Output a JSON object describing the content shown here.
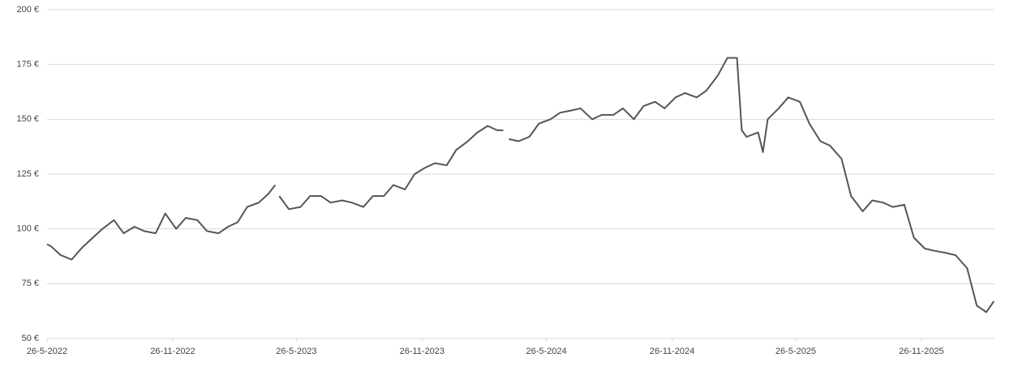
{
  "chart_data": {
    "type": "line",
    "x": [
      "26-5-2022",
      "1-6-2022",
      "15-6-2022",
      "1-7-2022",
      "15-7-2022",
      "1-8-2022",
      "15-8-2022",
      "1-9-2022",
      "15-9-2022",
      "1-10-2022",
      "15-10-2022",
      "1-11-2022",
      "15-11-2022",
      "1-12-2022",
      "15-12-2022",
      "1-1-2023",
      "15-1-2023",
      "1-2-2023",
      "15-2-2023",
      "1-3-2023",
      "15-3-2023",
      "1-4-2023",
      "15-4-2023",
      "25-4-2023",
      "28-4-2023",
      "1-5-2023",
      "15-5-2023",
      "1-6-2023",
      "15-6-2023",
      "1-7-2023",
      "15-7-2023",
      "1-8-2023",
      "15-8-2023",
      "1-9-2023",
      "15-9-2023",
      "1-10-2023",
      "15-10-2023",
      "1-11-2023",
      "15-11-2023",
      "1-12-2023",
      "15-12-2023",
      "1-1-2024",
      "15-1-2024",
      "1-2-2024",
      "15-2-2024",
      "1-3-2024",
      "15-3-2024",
      "24-3-2024",
      "27-3-2024",
      "1-4-2024",
      "15-4-2024",
      "1-5-2024",
      "15-5-2024",
      "1-6-2024",
      "15-6-2024",
      "1-7-2024",
      "15-7-2024",
      "1-8-2024",
      "15-8-2024",
      "1-9-2024",
      "15-9-2024",
      "1-10-2024",
      "15-10-2024",
      "1-11-2024",
      "15-11-2024",
      "1-12-2024",
      "15-12-2024",
      "1-1-2025",
      "15-1-2025",
      "1-2-2025",
      "15-2-2025",
      "1-3-2025",
      "8-3-2025",
      "15-3-2025",
      "1-4-2025",
      "8-4-2025",
      "15-4-2025",
      "1-5-2025",
      "15-5-2025",
      "1-6-2025",
      "15-6-2025",
      "1-7-2025",
      "15-7-2025",
      "1-8-2025",
      "15-8-2025",
      "1-9-2025",
      "15-9-2025",
      "1-10-2025",
      "15-10-2025",
      "1-11-2025",
      "15-11-2025",
      "1-12-2025",
      "15-12-2025",
      "1-1-2026",
      "15-1-2026",
      "1-2-2026",
      "15-2-2026",
      "1-3-2026",
      "12-3-2026"
    ],
    "series": [
      {
        "color": "#555555",
        "values": [
          93,
          92,
          88,
          86,
          91,
          96,
          100,
          104,
          98,
          101,
          99,
          98,
          107,
          100,
          105,
          104,
          99,
          98,
          101,
          103,
          110,
          112,
          116,
          120,
          null,
          115,
          109,
          110,
          115,
          115,
          112,
          113,
          112,
          110,
          115,
          115,
          120,
          118,
          125,
          128,
          130,
          129,
          136,
          140,
          144,
          147,
          145,
          145,
          null,
          141,
          140,
          142,
          148,
          150,
          153,
          154,
          155,
          150,
          152,
          152,
          155,
          150,
          156,
          158,
          155,
          160,
          162,
          160,
          163,
          170,
          178,
          178,
          145,
          142,
          144,
          135,
          150,
          155,
          160,
          158,
          148,
          140,
          138,
          132,
          115,
          108,
          113,
          112,
          110,
          111,
          96,
          91,
          90,
          89,
          88,
          82,
          65,
          62,
          67
        ]
      }
    ],
    "xlim": [
      "26-5-2022",
      "13-3-2026"
    ],
    "xticks": [
      "26-5-2022",
      "26-11-2022",
      "26-5-2023",
      "26-11-2023",
      "26-5-2024",
      "26-11-2024",
      "26-5-2025",
      "26-11-2025"
    ],
    "ylim": [
      50,
      200
    ],
    "yticks": [
      {
        "value": 50,
        "label": "50 €"
      },
      {
        "value": 75,
        "label": "75 €"
      },
      {
        "value": 100,
        "label": "100 €"
      },
      {
        "value": 125,
        "label": "125 €"
      },
      {
        "value": 150,
        "label": "150 €"
      },
      {
        "value": 175,
        "label": "175 €"
      },
      {
        "value": 200,
        "label": "200 €"
      }
    ],
    "grid": true
  }
}
